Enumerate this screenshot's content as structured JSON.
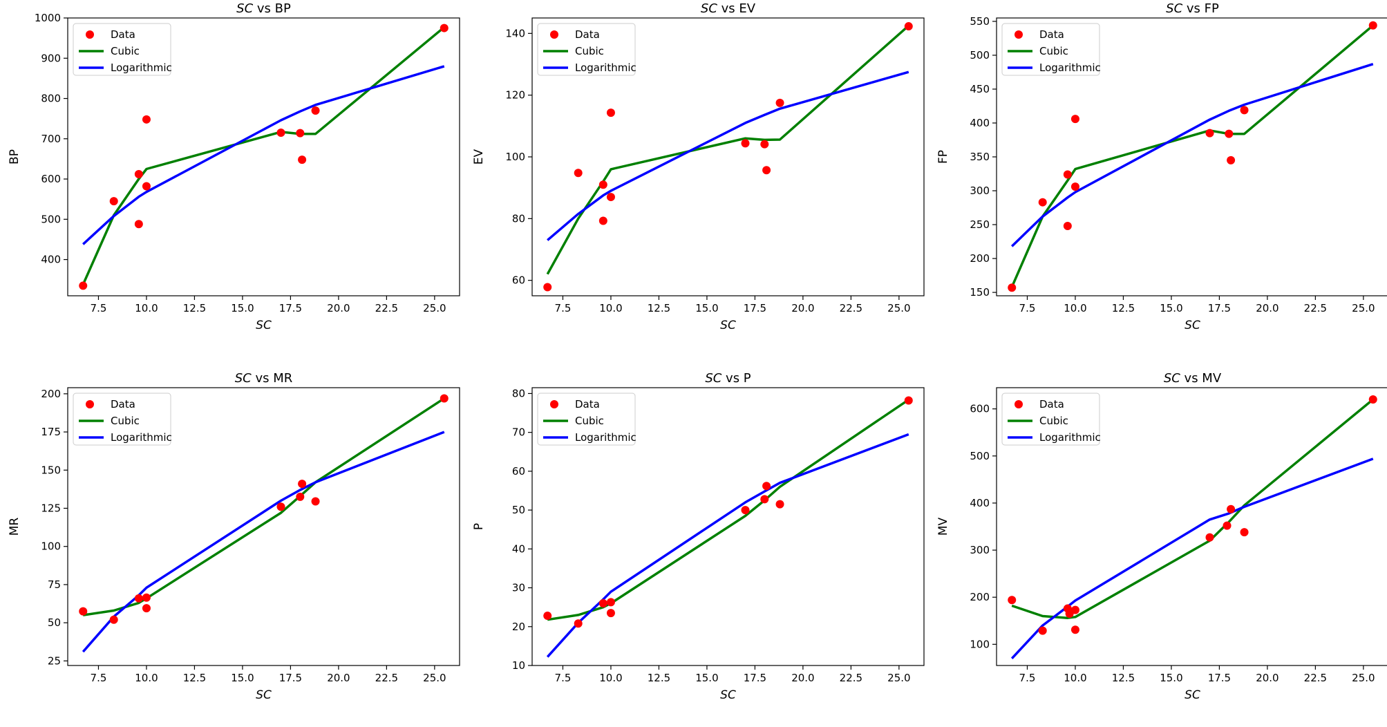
{
  "colors": {
    "data": "#ff0000",
    "cubic": "#008000",
    "logarithmic": "#0000ff"
  },
  "chart_data": [
    {
      "type": "scatter",
      "title_var": "SC",
      "title_rest": " vs BP",
      "xlabel": "SC",
      "ylabel": "BP",
      "xlim": [
        5.9,
        26.3
      ],
      "ylim": [
        310,
        1000
      ],
      "xticks": [
        "7.5",
        "10.0",
        "12.5",
        "15.0",
        "17.5",
        "20.0",
        "22.5",
        "25.0"
      ],
      "yticks": [
        "400",
        "500",
        "600",
        "700",
        "800",
        "900",
        "1000"
      ],
      "legend": {
        "placement": "upper-left",
        "entries": [
          "Data",
          "Cubic",
          "Logarithmic"
        ]
      },
      "series": [
        {
          "name": "Data",
          "kind": "points",
          "x": [
            6.7,
            8.3,
            9.6,
            9.6,
            10.0,
            10.0,
            17.0,
            18.0,
            18.1,
            18.8,
            25.5
          ],
          "y": [
            335,
            545,
            612,
            488,
            748,
            582,
            715,
            714,
            648,
            770,
            975
          ]
        },
        {
          "name": "Cubic",
          "kind": "line",
          "x": [
            6.7,
            8.3,
            9.6,
            10.0,
            17.0,
            18.0,
            18.8,
            25.5
          ],
          "y": [
            338,
            510,
            600,
            625,
            717,
            712,
            712,
            977
          ]
        },
        {
          "name": "Logarithmic",
          "kind": "line",
          "x": [
            6.7,
            8.3,
            9.6,
            10.0,
            17.0,
            18.0,
            18.8,
            25.5
          ],
          "y": [
            438,
            508,
            556,
            568,
            746,
            768,
            784,
            880
          ]
        }
      ]
    },
    {
      "type": "scatter",
      "title_var": "SC",
      "title_rest": " vs EV",
      "xlabel": "SC",
      "ylabel": "EV",
      "xlim": [
        5.9,
        26.3
      ],
      "ylim": [
        55,
        145
      ],
      "xticks": [
        "7.5",
        "10.0",
        "12.5",
        "15.0",
        "17.5",
        "20.0",
        "22.5",
        "25.0"
      ],
      "yticks": [
        "60",
        "80",
        "100",
        "120",
        "140"
      ],
      "legend": {
        "placement": "upper-left",
        "entries": [
          "Data",
          "Cubic",
          "Logarithmic"
        ]
      },
      "series": [
        {
          "name": "Data",
          "kind": "points",
          "x": [
            6.7,
            8.3,
            9.6,
            9.6,
            10.0,
            10.0,
            17.0,
            18.0,
            18.1,
            18.8,
            25.5
          ],
          "y": [
            57.8,
            94.8,
            91.0,
            79.3,
            114.3,
            87.0,
            104.4,
            104.1,
            95.7,
            117.5,
            142.3
          ]
        },
        {
          "name": "Cubic",
          "kind": "line",
          "x": [
            6.7,
            8.3,
            9.6,
            10.0,
            17.0,
            18.0,
            18.8,
            25.5
          ],
          "y": [
            62,
            80,
            92,
            96,
            106,
            105.5,
            105.6,
            142.5
          ]
        },
        {
          "name": "Logarithmic",
          "kind": "line",
          "x": [
            6.7,
            8.3,
            9.6,
            10.0,
            17.0,
            18.0,
            18.8,
            25.5
          ],
          "y": [
            73,
            81.5,
            87.5,
            89,
            111,
            113.6,
            115.6,
            127.5
          ]
        }
      ]
    },
    {
      "type": "scatter",
      "title_var": "SC",
      "title_rest": " vs FP",
      "xlabel": "SC",
      "ylabel": "FP",
      "xlim": [
        5.9,
        26.3
      ],
      "ylim": [
        145,
        555
      ],
      "xticks": [
        "7.5",
        "10.0",
        "12.5",
        "15.0",
        "17.5",
        "20.0",
        "22.5",
        "25.0"
      ],
      "yticks": [
        "150",
        "200",
        "250",
        "300",
        "350",
        "400",
        "450",
        "500",
        "550"
      ],
      "legend": {
        "placement": "upper-left",
        "entries": [
          "Data",
          "Cubic",
          "Logarithmic"
        ]
      },
      "series": [
        {
          "name": "Data",
          "kind": "points",
          "x": [
            6.7,
            8.3,
            9.6,
            9.6,
            10.0,
            10.0,
            17.0,
            18.0,
            18.1,
            18.8,
            25.5
          ],
          "y": [
            157,
            283,
            324,
            248,
            406,
            306,
            385,
            384,
            345,
            419,
            544
          ]
        },
        {
          "name": "Cubic",
          "kind": "line",
          "x": [
            6.7,
            8.3,
            9.6,
            10.0,
            17.0,
            18.0,
            18.8,
            25.5
          ],
          "y": [
            158,
            262,
            315,
            332,
            389,
            384,
            384,
            544
          ]
        },
        {
          "name": "Logarithmic",
          "kind": "line",
          "x": [
            6.7,
            8.3,
            9.6,
            10.0,
            17.0,
            18.0,
            18.8,
            25.5
          ],
          "y": [
            218,
            262,
            290,
            298,
            405,
            418,
            427,
            487
          ]
        }
      ]
    },
    {
      "type": "scatter",
      "title_var": "SC",
      "title_rest": " vs MR",
      "xlabel": "SC",
      "ylabel": "MR",
      "xlim": [
        5.9,
        26.3
      ],
      "ylim": [
        22,
        204
      ],
      "xticks": [
        "7.5",
        "10.0",
        "12.5",
        "15.0",
        "17.5",
        "20.0",
        "22.5",
        "25.0"
      ],
      "yticks": [
        "25",
        "50",
        "75",
        "100",
        "125",
        "150",
        "175",
        "200"
      ],
      "legend": {
        "placement": "upper-left",
        "entries": [
          "Data",
          "Cubic",
          "Logarithmic"
        ]
      },
      "series": [
        {
          "name": "Data",
          "kind": "points",
          "x": [
            6.7,
            8.3,
            9.6,
            10.0,
            10.0,
            17.0,
            18.0,
            18.1,
            18.8,
            25.5
          ],
          "y": [
            57.5,
            52,
            66,
            66.5,
            59.5,
            126,
            132.5,
            141,
            129.5,
            197
          ]
        },
        {
          "name": "Cubic",
          "kind": "line",
          "x": [
            6.7,
            8.3,
            9.6,
            10.0,
            17.0,
            18.0,
            18.8,
            25.5
          ],
          "y": [
            55,
            58,
            63,
            66,
            122,
            133,
            142,
            197
          ]
        },
        {
          "name": "Logarithmic",
          "kind": "line",
          "x": [
            6.7,
            8.3,
            9.6,
            10.0,
            17.0,
            18.0,
            18.8,
            25.5
          ],
          "y": [
            31,
            54,
            68,
            73,
            130,
            137,
            142,
            175
          ]
        }
      ]
    },
    {
      "type": "scatter",
      "title_var": "SC",
      "title_rest": " vs P",
      "xlabel": "SC",
      "ylabel": "P",
      "xlim": [
        5.9,
        26.3
      ],
      "ylim": [
        10,
        81.5
      ],
      "xticks": [
        "7.5",
        "10.0",
        "12.5",
        "15.0",
        "17.5",
        "20.0",
        "22.5",
        "25.0"
      ],
      "yticks": [
        "10",
        "20",
        "30",
        "40",
        "50",
        "60",
        "70",
        "80"
      ],
      "legend": {
        "placement": "upper-left",
        "entries": [
          "Data",
          "Cubic",
          "Logarithmic"
        ]
      },
      "series": [
        {
          "name": "Data",
          "kind": "points",
          "x": [
            6.7,
            8.3,
            9.6,
            10.0,
            10.0,
            17.0,
            18.0,
            18.1,
            18.8,
            25.5
          ],
          "y": [
            22.8,
            20.8,
            26,
            26.3,
            23.5,
            50,
            52.8,
            56.2,
            51.5,
            78.2
          ]
        },
        {
          "name": "Cubic",
          "kind": "line",
          "x": [
            6.7,
            8.3,
            9.6,
            10.0,
            17.0,
            18.0,
            18.8,
            25.5
          ],
          "y": [
            21.8,
            23,
            25,
            26,
            48.5,
            52.5,
            56,
            78.4
          ]
        },
        {
          "name": "Logarithmic",
          "kind": "line",
          "x": [
            6.7,
            8.3,
            9.6,
            10.0,
            17.0,
            18.0,
            18.8,
            25.5
          ],
          "y": [
            12.2,
            21,
            27,
            29,
            52,
            54.8,
            57,
            69.5
          ]
        }
      ]
    },
    {
      "type": "scatter",
      "title_var": "SC",
      "title_rest": " vs MV",
      "xlabel": "SC",
      "ylabel": "MV",
      "xlim": [
        5.9,
        26.3
      ],
      "ylim": [
        55,
        645
      ],
      "xticks": [
        "7.5",
        "10.0",
        "12.5",
        "15.0",
        "17.5",
        "20.0",
        "22.5",
        "25.0"
      ],
      "yticks": [
        "100",
        "200",
        "300",
        "400",
        "500",
        "600"
      ],
      "legend": {
        "placement": "upper-left",
        "entries": [
          "Data",
          "Cubic",
          "Logarithmic"
        ]
      },
      "series": [
        {
          "name": "Data",
          "kind": "points",
          "x": [
            6.7,
            8.3,
            9.6,
            9.7,
            10.0,
            10.0,
            17.0,
            17.9,
            18.1,
            18.8,
            25.5
          ],
          "y": [
            194,
            129,
            176,
            165,
            131,
            173,
            327,
            352,
            387,
            338,
            620
          ]
        },
        {
          "name": "Cubic",
          "kind": "line",
          "x": [
            6.7,
            8.3,
            9.6,
            10.0,
            17.0,
            18.0,
            18.8,
            25.5
          ],
          "y": [
            182,
            160,
            156,
            158,
            320,
            360,
            395,
            620
          ]
        },
        {
          "name": "Logarithmic",
          "kind": "line",
          "x": [
            6.7,
            8.3,
            9.6,
            10.0,
            17.0,
            18.0,
            18.8,
            25.5
          ],
          "y": [
            70,
            140,
            180,
            193,
            365,
            378,
            392,
            494
          ]
        }
      ]
    }
  ]
}
